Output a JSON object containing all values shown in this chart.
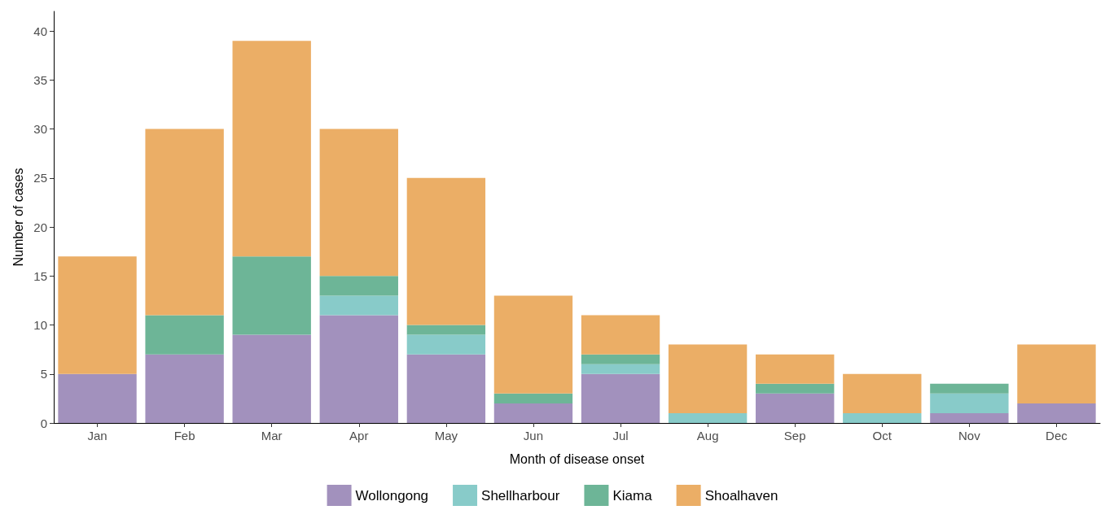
{
  "chart_data": {
    "type": "bar",
    "stacked": true,
    "xlabel": "Month of disease onset",
    "ylabel": "Number of cases",
    "categories": [
      "Jan",
      "Feb",
      "Mar",
      "Apr",
      "May",
      "Jun",
      "Jul",
      "Aug",
      "Sep",
      "Oct",
      "Nov",
      "Dec"
    ],
    "series": [
      {
        "name": "Wollongong",
        "color": "#a291bd",
        "values": [
          5,
          7,
          9,
          11,
          7,
          2,
          5,
          0,
          3,
          0,
          1,
          2
        ]
      },
      {
        "name": "Shellharbour",
        "color": "#88cbc9",
        "values": [
          0,
          0,
          0,
          2,
          2,
          0,
          1,
          1,
          0,
          1,
          2,
          0
        ]
      },
      {
        "name": "Kiama",
        "color": "#6db597",
        "values": [
          0,
          4,
          8,
          2,
          1,
          1,
          1,
          0,
          1,
          0,
          1,
          0
        ]
      },
      {
        "name": "Shoalhaven",
        "color": "#ebae66",
        "values": [
          12,
          19,
          22,
          15,
          15,
          10,
          4,
          7,
          3,
          4,
          0,
          6
        ]
      }
    ],
    "ylim": [
      0,
      42
    ],
    "yticks": [
      0,
      5,
      10,
      15,
      20,
      25,
      30,
      35,
      40
    ],
    "grid": false,
    "legend": "bottom"
  }
}
